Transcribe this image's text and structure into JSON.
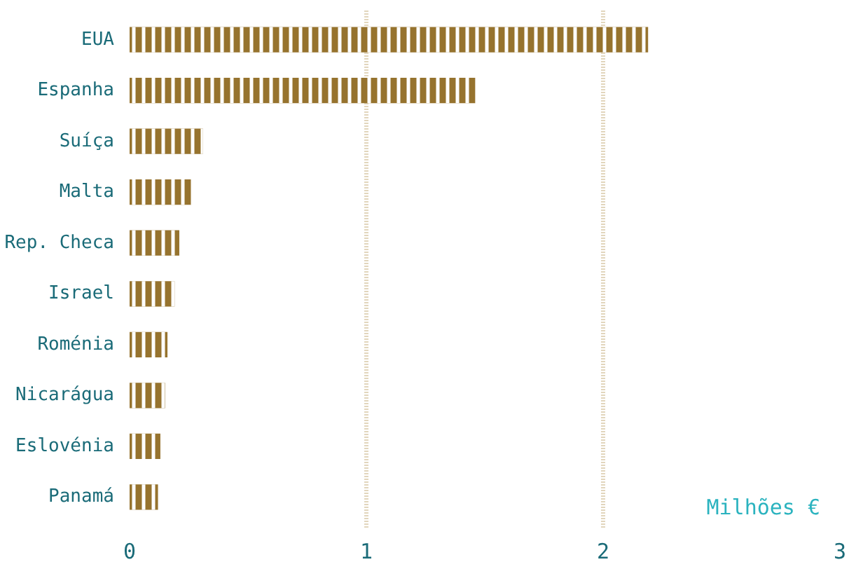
{
  "chart_data": {
    "type": "bar",
    "orientation": "horizontal",
    "xlabel": "Milhões €",
    "categories": [
      "EUA",
      "Espanha",
      "Suíça",
      "Malta",
      "Rep. Checa",
      "Israel",
      "Roménia",
      "Nicarágua",
      "Eslovénia",
      "Panamá"
    ],
    "values": [
      2.19,
      1.46,
      0.31,
      0.26,
      0.21,
      0.19,
      0.16,
      0.15,
      0.13,
      0.12
    ],
    "color": "#96732e",
    "xlim": [
      0,
      3
    ],
    "xticks": [
      0,
      1,
      2,
      3
    ],
    "grid": "x"
  }
}
